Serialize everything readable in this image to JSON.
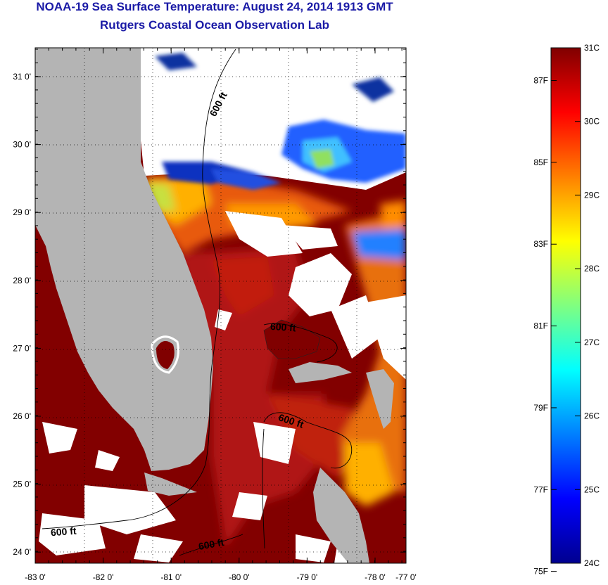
{
  "header": {
    "title": "NOAA-19 Sea Surface Temperature:  August 24, 2014 1913 GMT",
    "subtitle": "Rutgers Coastal Ocean Observation Lab"
  },
  "map": {
    "lon_ticks": [
      {
        "value": -83,
        "label": "-83 0'"
      },
      {
        "value": -82,
        "label": "-82 0'"
      },
      {
        "value": -81,
        "label": "-81 0'"
      },
      {
        "value": -80,
        "label": "-80 0'"
      },
      {
        "value": -79,
        "label": "-79 0'"
      },
      {
        "value": -78,
        "label": "-78 0'"
      },
      {
        "value": -77,
        "label": "-77 0'"
      }
    ],
    "lat_ticks": [
      {
        "value": 31,
        "label": "31 0'"
      },
      {
        "value": 30,
        "label": "30 0'"
      },
      {
        "value": 29,
        "label": "29 0'"
      },
      {
        "value": 28,
        "label": "28 0'"
      },
      {
        "value": 27,
        "label": "27 0'"
      },
      {
        "value": 26,
        "label": "26 0'"
      },
      {
        "value": 25,
        "label": "25 0'"
      },
      {
        "value": 24,
        "label": "24 0'"
      }
    ],
    "contour_labels": [
      {
        "text": "600 ft"
      },
      {
        "text": "600 ft"
      },
      {
        "text": "600 ft"
      },
      {
        "text": "600 ft"
      },
      {
        "text": "600 ft"
      }
    ],
    "colors": {
      "land": "#b4b4b4",
      "cloud": "#ffffff",
      "warm_max": "#800000"
    }
  },
  "colorbar": {
    "celsius": [
      "31C",
      "30C",
      "29C",
      "28C",
      "27C",
      "26C",
      "25C",
      "24C"
    ],
    "fahrenheit": [
      "87F",
      "85F",
      "83F",
      "81F",
      "79F",
      "77F",
      "75F"
    ]
  }
}
